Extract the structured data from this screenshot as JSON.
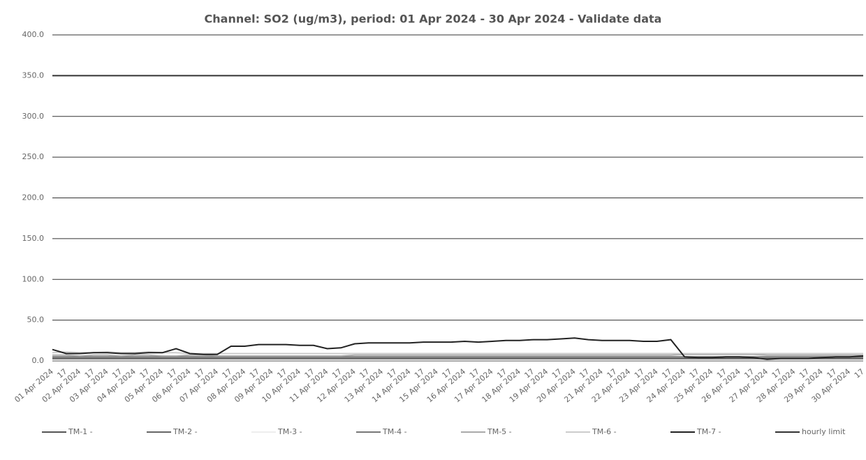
{
  "chart_data": {
    "type": "line",
    "title": "Channel: SO2 (ug/m3), period: 01 Apr 2024  - 30 Apr 2024 - Validate data",
    "categories": [
      "01 Apr 2024",
      "17",
      "02 Apr 2024",
      "17",
      "03 Apr 2024",
      "17",
      "04 Apr 2024",
      "17",
      "05 Apr 2024",
      "17",
      "06 Apr 2024",
      "17",
      "07 Apr 2024",
      "17",
      "08 Apr 2024",
      "17",
      "09 Apr 2024",
      "17",
      "10 Apr 2024",
      "17",
      "11 Apr 2024",
      "17",
      "12 Apr 2024",
      "17",
      "13 Apr 2024",
      "17",
      "14 Apr 2024",
      "17",
      "15 Apr 2024",
      "17",
      "16 Apr 2024",
      "17",
      "17 Apr 2024",
      "17",
      "18 Apr 2024",
      "17",
      "19 Apr 2024",
      "17",
      "20 Apr 2024",
      "17",
      "21 Apr 2024",
      "17",
      "22 Apr 2024",
      "17",
      "23 Apr 2024",
      "17",
      "24 Apr 2024",
      "17",
      "25 Apr 2024",
      "17",
      "26 Apr 2024",
      "17",
      "27 Apr 2024",
      "17",
      "28 Apr 2024",
      "17",
      "29 Apr 2024",
      "17",
      "30 Apr 2024",
      "17"
    ],
    "series": [
      {
        "name": "TM-1 -",
        "color": "#555555",
        "values": [
          3,
          3,
          3,
          3,
          3,
          3,
          3,
          3,
          3,
          3,
          3,
          3,
          3,
          3,
          3,
          3,
          3,
          3,
          3,
          3,
          3,
          3,
          3,
          3,
          3,
          3,
          3,
          3,
          3,
          3,
          3,
          3,
          3,
          3,
          3,
          3,
          3,
          3,
          3,
          3,
          3,
          3,
          3,
          3,
          3,
          3,
          3,
          3,
          3,
          3,
          3,
          3,
          3,
          3,
          3,
          3,
          3,
          3,
          3,
          3
        ]
      },
      {
        "name": "TM-2 -",
        "color": "#666666",
        "values": [
          2,
          2,
          2,
          2,
          2,
          2,
          2,
          2,
          2,
          2,
          2,
          2,
          2,
          2,
          2,
          2,
          2,
          2,
          2,
          2,
          2,
          2,
          2,
          2,
          2,
          2,
          2,
          2,
          2,
          2,
          2,
          2,
          2,
          2,
          2,
          2,
          2,
          2,
          2,
          2,
          2,
          2,
          2,
          2,
          2,
          2,
          2,
          2,
          2,
          2,
          2,
          2,
          2,
          2,
          2,
          2,
          2,
          2,
          2,
          2
        ]
      },
      {
        "name": "TM-3 -",
        "color": "#eeeeee",
        "values": [
          1,
          1,
          1,
          1,
          1,
          1,
          1,
          1,
          1,
          1,
          1,
          1,
          1,
          1,
          1,
          1,
          1,
          1,
          1,
          1,
          1,
          1,
          1,
          1,
          1,
          1,
          1,
          1,
          1,
          1,
          1,
          1,
          1,
          1,
          1,
          1,
          1,
          1,
          1,
          1,
          1,
          1,
          1,
          1,
          1,
          1,
          1,
          1,
          1,
          1,
          1,
          1,
          1,
          1,
          1,
          1,
          1,
          1,
          1,
          1
        ]
      },
      {
        "name": "TM-4 -",
        "color": "#777777",
        "values": [
          5,
          5,
          5,
          5,
          5,
          5,
          5,
          5,
          5,
          5,
          5,
          5,
          5,
          5,
          5,
          5,
          5,
          5,
          5,
          5,
          5,
          5,
          5,
          5,
          5,
          5,
          5,
          5,
          5,
          5,
          5,
          5,
          5,
          5,
          5,
          5,
          5,
          5,
          5,
          5,
          5,
          5,
          5,
          5,
          5,
          5,
          5,
          5,
          5,
          5,
          5,
          5,
          5,
          5,
          5,
          5,
          5,
          5,
          5,
          5
        ]
      },
      {
        "name": "TM-5 -",
        "color": "#aaaaaa",
        "values": [
          7,
          7,
          6,
          7,
          7,
          6,
          7,
          7,
          6,
          6,
          7,
          7,
          6,
          6,
          6,
          6,
          6,
          6,
          6,
          6,
          6,
          6,
          7,
          7,
          7,
          7,
          7,
          7,
          7,
          7,
          7,
          7,
          7,
          7,
          7,
          7,
          7,
          7,
          7,
          7,
          7,
          7,
          7,
          7,
          7,
          7,
          8,
          8,
          8,
          8,
          8,
          8,
          7,
          7,
          7,
          7,
          7,
          7,
          7,
          7
        ]
      },
      {
        "name": "TM-6 -",
        "color": "#cccccc",
        "values": [
          10,
          11,
          10,
          10,
          11,
          10,
          10,
          11,
          10,
          10,
          9,
          9,
          9,
          9,
          9,
          9,
          9,
          9,
          9,
          9,
          9,
          9,
          9,
          9,
          9,
          9,
          9,
          9,
          9,
          9,
          9,
          9,
          9,
          9,
          9,
          9,
          9,
          9,
          9,
          9,
          9,
          9,
          9,
          9,
          9,
          9,
          9,
          9,
          9,
          9,
          9,
          9,
          9,
          9,
          9,
          9,
          9,
          9,
          9,
          9
        ]
      },
      {
        "name": "TM-7 -",
        "color": "#222222",
        "values": [
          14,
          9,
          9,
          10,
          10,
          9,
          9,
          10,
          10,
          15,
          9,
          8,
          8,
          18,
          18,
          20,
          20,
          20,
          19,
          19,
          15,
          16,
          21,
          22,
          22,
          22,
          22,
          23,
          23,
          23,
          24,
          23,
          24,
          25,
          25,
          26,
          26,
          27,
          28,
          26,
          25,
          25,
          25,
          24,
          24,
          26,
          5,
          4,
          4,
          5,
          5,
          4,
          2,
          3,
          3,
          3,
          4,
          5,
          5,
          6
        ]
      },
      {
        "name": "hourly limit",
        "color": "#333333",
        "values": [
          350,
          350,
          350,
          350,
          350,
          350,
          350,
          350,
          350,
          350,
          350,
          350,
          350,
          350,
          350,
          350,
          350,
          350,
          350,
          350,
          350,
          350,
          350,
          350,
          350,
          350,
          350,
          350,
          350,
          350,
          350,
          350,
          350,
          350,
          350,
          350,
          350,
          350,
          350,
          350,
          350,
          350,
          350,
          350,
          350,
          350,
          350,
          350,
          350,
          350,
          350,
          350,
          350,
          350,
          350,
          350,
          350,
          350,
          350,
          350
        ]
      }
    ],
    "ylim": [
      0,
      400
    ],
    "yticks": [
      {
        "value": 0,
        "label": "0.0"
      },
      {
        "value": 50,
        "label": "50.0"
      },
      {
        "value": 100,
        "label": "100.0"
      },
      {
        "value": 150,
        "label": "150.0"
      },
      {
        "value": 200,
        "label": "200.0"
      },
      {
        "value": 250,
        "label": "250.0"
      },
      {
        "value": 300,
        "label": "300.0"
      },
      {
        "value": 350,
        "label": "350.0"
      },
      {
        "value": 400,
        "label": "400.0"
      }
    ],
    "grid": true
  }
}
